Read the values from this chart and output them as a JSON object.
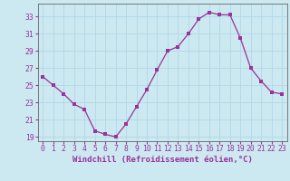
{
  "x": [
    0,
    1,
    2,
    3,
    4,
    5,
    6,
    7,
    8,
    9,
    10,
    11,
    12,
    13,
    14,
    15,
    16,
    17,
    18,
    19,
    20,
    21,
    22,
    23
  ],
  "y": [
    26.0,
    25.0,
    24.0,
    22.8,
    22.2,
    19.7,
    19.3,
    19.0,
    20.5,
    22.5,
    24.5,
    26.8,
    29.0,
    29.5,
    31.0,
    32.7,
    33.5,
    33.2,
    33.2,
    30.5,
    27.0,
    25.5,
    24.2,
    24.0
  ],
  "ylim": [
    18.5,
    34.5
  ],
  "yticks": [
    19,
    21,
    23,
    25,
    27,
    29,
    31,
    33
  ],
  "xlabel": "Windchill (Refroidissement éolien,°C)",
  "line_color": "#993399",
  "marker_color": "#993399",
  "bg_color": "#cce8f0",
  "grid_color": "#b0d8e8",
  "axis_color": "#666666",
  "tick_color": "#993399",
  "label_color": "#993399",
  "font_size_ticks": 5.8,
  "font_size_label": 6.5,
  "marker_size": 2.5,
  "linewidth": 0.9
}
